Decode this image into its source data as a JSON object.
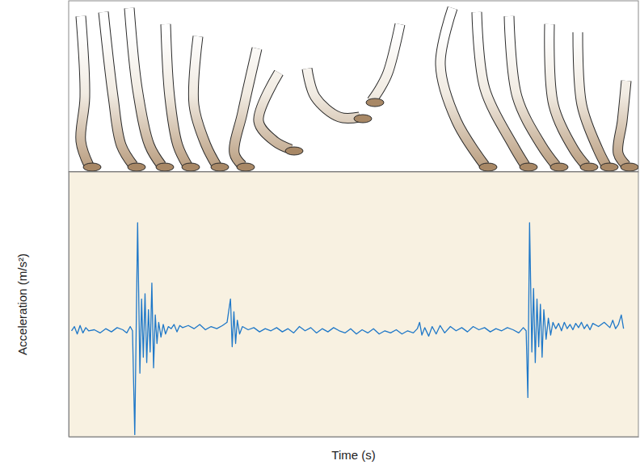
{
  "chart_data": {
    "type": "line",
    "x_label": "Time (s)",
    "y_label": "Acceleration (m/s²)",
    "xlim": [
      0,
      10
    ],
    "ylim": [
      -100,
      150
    ],
    "tick_labels": false,
    "grid": false,
    "color": "#1f78c8",
    "x": [
      0.05,
      0.1,
      0.15,
      0.2,
      0.25,
      0.3,
      0.35,
      0.45,
      0.55,
      0.65,
      0.75,
      0.85,
      0.95,
      1.02,
      1.08,
      1.12,
      1.16,
      1.21,
      1.25,
      1.28,
      1.31,
      1.34,
      1.37,
      1.4,
      1.43,
      1.46,
      1.49,
      1.52,
      1.55,
      1.58,
      1.62,
      1.66,
      1.7,
      1.75,
      1.8,
      1.85,
      1.9,
      1.95,
      2.0,
      2.1,
      2.2,
      2.3,
      2.4,
      2.5,
      2.6,
      2.7,
      2.78,
      2.84,
      2.87,
      2.9,
      2.93,
      2.96,
      3.0,
      3.05,
      3.15,
      3.25,
      3.35,
      3.45,
      3.55,
      3.65,
      3.75,
      3.85,
      3.95,
      4.05,
      4.15,
      4.25,
      4.35,
      4.45,
      4.55,
      4.65,
      4.75,
      4.85,
      4.95,
      5.05,
      5.15,
      5.25,
      5.35,
      5.45,
      5.55,
      5.65,
      5.75,
      5.85,
      5.95,
      6.05,
      6.12,
      6.16,
      6.2,
      6.25,
      6.32,
      6.38,
      6.45,
      6.52,
      6.6,
      6.7,
      6.8,
      6.9,
      7.0,
      7.1,
      7.2,
      7.3,
      7.4,
      7.5,
      7.6,
      7.7,
      7.8,
      7.9,
      7.98,
      8.03,
      8.06,
      8.09,
      8.13,
      8.16,
      8.19,
      8.22,
      8.25,
      8.28,
      8.31,
      8.34,
      8.38,
      8.42,
      8.46,
      8.5,
      8.55,
      8.6,
      8.65,
      8.7,
      8.75,
      8.8,
      8.85,
      8.9,
      8.95,
      9.0,
      9.05,
      9.1,
      9.15,
      9.2,
      9.3,
      9.4,
      9.5,
      9.55,
      9.6,
      9.65,
      9.7,
      9.74
    ],
    "values": [
      0,
      4,
      -3,
      5,
      -2,
      3,
      0,
      1,
      -2,
      2,
      -1,
      3,
      1,
      -2,
      4,
      0,
      -98,
      102,
      -40,
      30,
      -25,
      35,
      -30,
      20,
      -20,
      45,
      -35,
      15,
      -12,
      8,
      -6,
      6,
      -3,
      4,
      2,
      6,
      -1,
      5,
      3,
      5,
      2,
      6,
      1,
      4,
      2,
      5,
      8,
      30,
      -15,
      18,
      -12,
      10,
      -3,
      4,
      1,
      3,
      -1,
      2,
      0,
      3,
      -1,
      2,
      -2,
      4,
      0,
      3,
      -2,
      2,
      -1,
      3,
      0,
      -2,
      2,
      -3,
      1,
      -2,
      2,
      -3,
      0,
      -2,
      1,
      -3,
      0,
      -2,
      2,
      8,
      -4,
      3,
      -5,
      4,
      -3,
      5,
      -2,
      4,
      0,
      3,
      -1,
      4,
      1,
      3,
      -1,
      2,
      0,
      3,
      1,
      -2,
      3,
      0,
      -63,
      102,
      -20,
      40,
      -30,
      30,
      -15,
      25,
      -25,
      20,
      -8,
      12,
      -4,
      8,
      2,
      7,
      0,
      8,
      2,
      6,
      1,
      7,
      3,
      8,
      2,
      6,
      1,
      7,
      4,
      8,
      3,
      10,
      2,
      6,
      15,
      2
    ]
  }
}
